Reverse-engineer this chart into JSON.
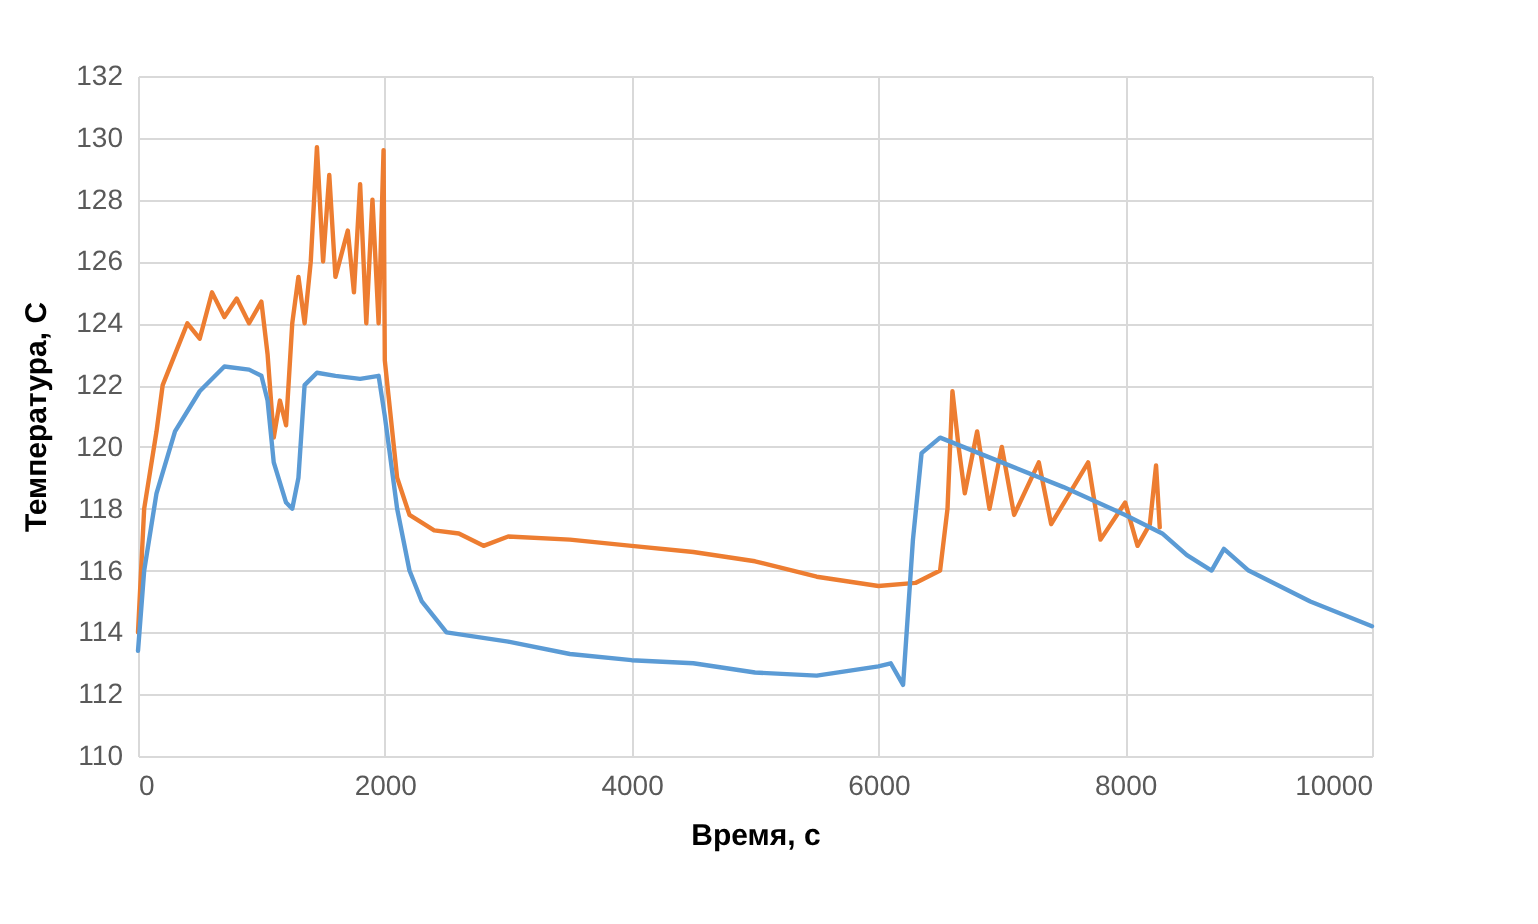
{
  "chart_data": {
    "type": "line",
    "xlabel": "Время, с",
    "ylabel": "Температура, С",
    "xlim": [
      0,
      10000
    ],
    "xticks": [
      0,
      2000,
      4000,
      6000,
      8000,
      10000
    ],
    "ylim": [
      110,
      132
    ],
    "yticks": [
      110,
      112,
      114,
      116,
      118,
      120,
      122,
      124,
      126,
      128,
      130,
      132
    ],
    "grid": true,
    "legend": false,
    "series": [
      {
        "color": "#ed7d31",
        "x": [
          0,
          50,
          150,
          200,
          300,
          400,
          500,
          600,
          700,
          800,
          900,
          1000,
          1050,
          1100,
          1150,
          1200,
          1250,
          1300,
          1350,
          1400,
          1450,
          1500,
          1550,
          1600,
          1700,
          1750,
          1800,
          1850,
          1900,
          1950,
          1990,
          2000,
          2100,
          2200,
          2400,
          2600,
          2800,
          3000,
          3500,
          4000,
          4500,
          5000,
          5500,
          6000,
          6300,
          6500,
          6560,
          6600,
          6650,
          6700,
          6800,
          6900,
          7000,
          7100,
          7300,
          7400,
          7700,
          7800,
          8000,
          8100,
          8200,
          8250,
          8280
        ],
        "values": [
          114,
          118,
          120.5,
          122,
          123,
          124,
          123.5,
          125,
          124.2,
          124.8,
          124,
          124.7,
          123,
          120.3,
          121.5,
          120.7,
          124,
          125.5,
          124,
          126,
          129.7,
          126,
          128.8,
          125.5,
          127,
          125,
          128.5,
          124,
          128,
          124,
          129.6,
          122.8,
          119,
          117.8,
          117.3,
          117.2,
          116.8,
          117.1,
          117,
          116.8,
          116.6,
          116.3,
          115.8,
          115.5,
          115.6,
          116,
          118,
          121.8,
          120,
          118.5,
          120.5,
          118,
          120,
          117.8,
          119.5,
          117.5,
          119.5,
          117,
          118.2,
          116.8,
          117.5,
          119.4,
          117.4
        ]
      },
      {
        "color": "#5b9bd5",
        "x": [
          0,
          50,
          150,
          300,
          500,
          700,
          900,
          1000,
          1050,
          1100,
          1200,
          1250,
          1300,
          1350,
          1450,
          1600,
          1800,
          1950,
          2000,
          2100,
          2200,
          2300,
          2500,
          3000,
          3500,
          4000,
          4500,
          5000,
          5500,
          6000,
          6100,
          6200,
          6280,
          6350,
          6500,
          7000,
          7500,
          8000,
          8300,
          8500,
          8700,
          8800,
          9000,
          9500,
          10000
        ],
        "values": [
          113.4,
          116,
          118.5,
          120.5,
          121.8,
          122.6,
          122.5,
          122.3,
          121.5,
          119.5,
          118.2,
          118,
          119,
          122,
          122.4,
          122.3,
          122.2,
          122.3,
          121,
          118,
          116,
          115,
          114,
          113.7,
          113.3,
          113.1,
          113,
          112.7,
          112.6,
          112.9,
          113,
          112.3,
          117,
          119.8,
          120.3,
          119.5,
          118.7,
          117.8,
          117.2,
          116.5,
          116,
          116.7,
          116,
          115,
          114.2
        ]
      }
    ]
  }
}
